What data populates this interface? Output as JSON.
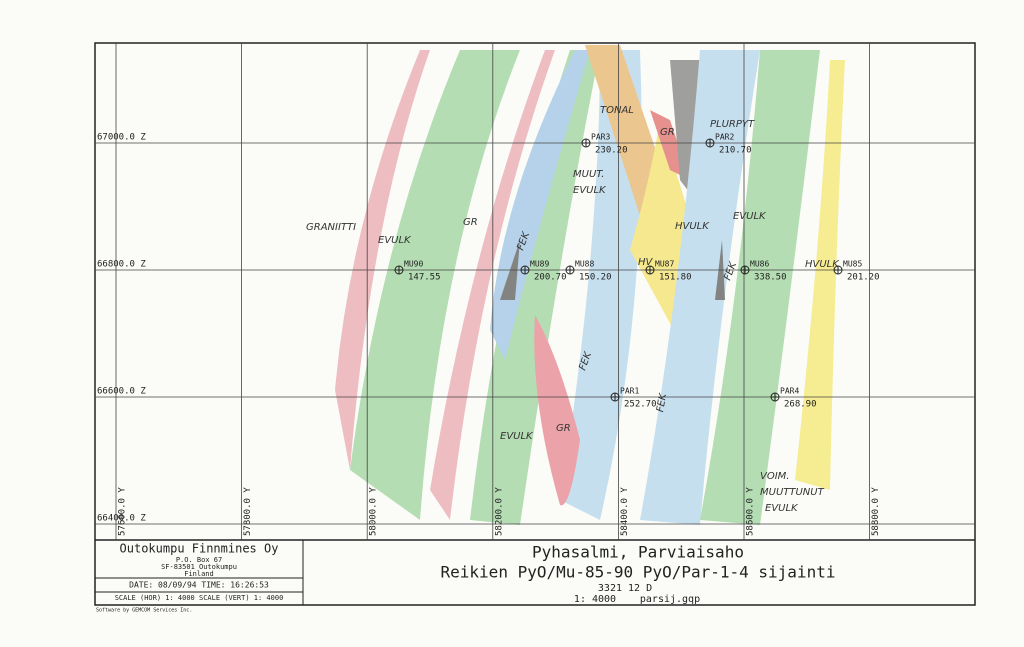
{
  "map": {
    "z_labels": [
      "67000.0 Z",
      "66800.0 Z",
      "66600.0 Z",
      "66400.0 Z"
    ],
    "y_labels": [
      "57600.0 Y",
      "57800.0 Y",
      "58000.0 Y",
      "58200.0 Y",
      "58400.0 Y",
      "58600.0 Y",
      "58800.0 Y"
    ],
    "holes": [
      {
        "name": "PAR3",
        "depth": "230.20"
      },
      {
        "name": "PAR2",
        "depth": "210.70"
      },
      {
        "name": "MU90",
        "depth": "147.55"
      },
      {
        "name": "MU89",
        "depth": "200.70"
      },
      {
        "name": "MU88",
        "depth": "150.20"
      },
      {
        "name": "MU87",
        "depth": "151.80"
      },
      {
        "name": "MU86",
        "depth": "338.50"
      },
      {
        "name": "MU85",
        "depth": "201.20"
      },
      {
        "name": "PAR1",
        "depth": "252.70"
      },
      {
        "name": "PAR4",
        "depth": "268.90"
      }
    ],
    "annotations": [
      "GRANIITTI",
      "EVULK",
      "GR",
      "FEK",
      "TONAL",
      "GR",
      "PLURPYT",
      "MUUT.",
      "EVULK",
      "HVULK",
      "EVULK",
      "HV",
      "FEK",
      "HVULK",
      "FEK",
      "GR",
      "EVULK",
      "FEK",
      "VOIM.",
      "MUUTTUNUT",
      "EVULK"
    ]
  },
  "title_block": {
    "company": "Outokumpu Finnmines Oy",
    "address": [
      "P.O. Box 67",
      "SF-83501 Outokumpu",
      "Finland"
    ],
    "date_time": "DATE: 08/09/94  TIME: 16:26:53",
    "scales": "SCALE (HOR)  1: 4000   SCALE (VERT)  1: 4000",
    "title": "Pyhasalmi, Parviaisaho",
    "subtitle": "Reikien  PyO/Mu-85-90  PyO/Par-1-4 sijainti",
    "sheet": "3321 12 D",
    "scale": "1: 4000",
    "file": "parsij.gqp"
  },
  "software": "Software by GEMCOM Services Inc."
}
